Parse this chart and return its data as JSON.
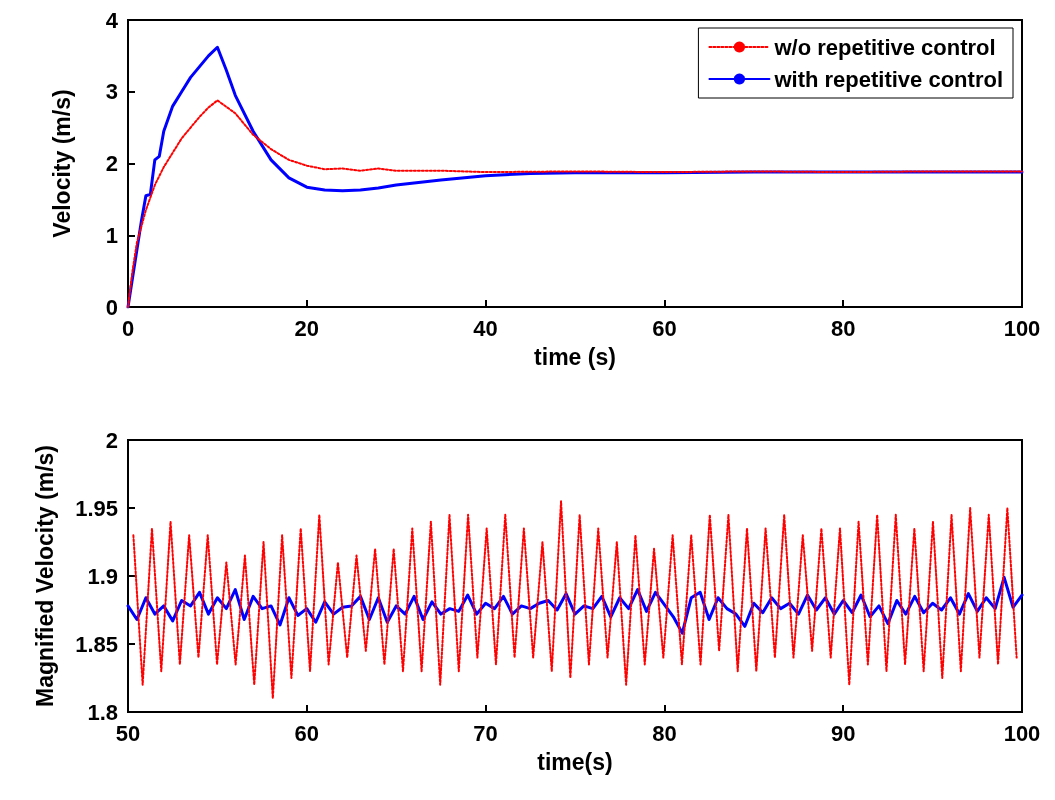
{
  "chart_data": [
    {
      "type": "line",
      "xlabel": "time (s)",
      "ylabel": "Velocity (m/s)",
      "xlim": [
        0,
        100
      ],
      "xticks": [
        0,
        20,
        40,
        60,
        80,
        100
      ],
      "ylim": [
        0,
        4
      ],
      "yticks": [
        0,
        1,
        2,
        3,
        4
      ],
      "grid": false,
      "legend": "top right",
      "marker": "none",
      "series": [
        {
          "name": "w/o repetitive control",
          "color": "#ff0000",
          "line_style": "dotted",
          "x": [
            0,
            0.5,
            1,
            2,
            3,
            4,
            5,
            6,
            7,
            8,
            9,
            10,
            12,
            14,
            16,
            18,
            20,
            22,
            24,
            26,
            28,
            30,
            35,
            40,
            50,
            60,
            70,
            80,
            90,
            100
          ],
          "values": [
            0,
            0.5,
            0.9,
            1.35,
            1.7,
            1.95,
            2.15,
            2.35,
            2.5,
            2.65,
            2.78,
            2.88,
            2.7,
            2.4,
            2.2,
            2.05,
            1.97,
            1.92,
            1.93,
            1.9,
            1.93,
            1.9,
            1.9,
            1.88,
            1.89,
            1.88,
            1.89,
            1.88,
            1.89,
            1.89
          ]
        },
        {
          "name": "with repetitive control",
          "color": "#0000ff",
          "line_style": "solid",
          "x": [
            0,
            0.5,
            1,
            1.5,
            2,
            2.5,
            3,
            3.5,
            4,
            5,
            6,
            7,
            8,
            9,
            10,
            11,
            12,
            14,
            16,
            18,
            20,
            22,
            24,
            26,
            28,
            30,
            35,
            40,
            45,
            50,
            60,
            70,
            80,
            90,
            100
          ],
          "values": [
            0,
            0.4,
            0.8,
            1.2,
            1.55,
            1.57,
            2.05,
            2.1,
            2.45,
            2.8,
            3.0,
            3.2,
            3.35,
            3.5,
            3.62,
            3.3,
            2.95,
            2.45,
            2.05,
            1.8,
            1.67,
            1.63,
            1.62,
            1.63,
            1.66,
            1.7,
            1.77,
            1.83,
            1.86,
            1.87,
            1.87,
            1.88,
            1.88,
            1.88,
            1.88
          ]
        }
      ]
    },
    {
      "type": "line",
      "xlabel": "time(s)",
      "ylabel": "Magnified Velocity (m/s)",
      "xlim": [
        50,
        100
      ],
      "xticks": [
        50,
        60,
        70,
        80,
        90,
        100
      ],
      "ylim": [
        1.8,
        2
      ],
      "yticks": [
        1.8,
        1.85,
        1.9,
        1.95,
        2
      ],
      "grid": false,
      "marker": "none",
      "series": [
        {
          "color": "#ff0000",
          "line_style": "dotted",
          "x": [
            50.3,
            50.82,
            51.34,
            51.86,
            52.38,
            52.9,
            53.42,
            53.94,
            54.46,
            54.98,
            55.5,
            56.02,
            56.54,
            57.06,
            57.58,
            58.1,
            58.62,
            59.14,
            59.66,
            60.18,
            60.7,
            61.22,
            61.74,
            62.26,
            62.78,
            63.3,
            63.82,
            64.34,
            64.86,
            65.38,
            65.9,
            66.42,
            66.94,
            67.46,
            67.98,
            68.5,
            69.02,
            69.54,
            70.06,
            70.58,
            71.1,
            71.62,
            72.14,
            72.66,
            73.18,
            73.7,
            74.22,
            74.74,
            75.26,
            75.78,
            76.3,
            76.82,
            77.34,
            77.86,
            78.38,
            78.9,
            79.42,
            79.94,
            80.46,
            80.98,
            81.5,
            82.02,
            82.54,
            83.06,
            83.58,
            84.1,
            84.62,
            85.14,
            85.66,
            86.18,
            86.7,
            87.22,
            87.74,
            88.26,
            88.78,
            89.3,
            89.82,
            90.34,
            90.86,
            91.38,
            91.9,
            92.42,
            92.94,
            93.46,
            93.98,
            94.5,
            95.02,
            95.54,
            96.06,
            96.58,
            97.1,
            97.62,
            98.14,
            98.66,
            99.18,
            99.7
          ],
          "values": [
            1.93,
            1.82,
            1.935,
            1.83,
            1.94,
            1.835,
            1.93,
            1.84,
            1.93,
            1.835,
            1.91,
            1.835,
            1.915,
            1.82,
            1.925,
            1.81,
            1.93,
            1.825,
            1.935,
            1.83,
            1.945,
            1.835,
            1.91,
            1.84,
            1.915,
            1.845,
            1.92,
            1.835,
            1.92,
            1.83,
            1.935,
            1.83,
            1.94,
            1.82,
            1.945,
            1.83,
            1.945,
            1.84,
            1.935,
            1.835,
            1.945,
            1.84,
            1.935,
            1.84,
            1.925,
            1.83,
            1.955,
            1.825,
            1.945,
            1.835,
            1.935,
            1.84,
            1.925,
            1.82,
            1.93,
            1.835,
            1.92,
            1.84,
            1.93,
            1.835,
            1.93,
            1.835,
            1.945,
            1.845,
            1.945,
            1.83,
            1.935,
            1.83,
            1.935,
            1.84,
            1.945,
            1.84,
            1.93,
            1.845,
            1.935,
            1.84,
            1.935,
            1.82,
            1.94,
            1.835,
            1.945,
            1.83,
            1.945,
            1.835,
            1.935,
            1.83,
            1.94,
            1.825,
            1.945,
            1.83,
            1.95,
            1.84,
            1.945,
            1.835,
            1.95,
            1.84
          ]
        },
        {
          "color": "#0000ff",
          "line_style": "solid",
          "x": [
            50,
            50.5,
            51,
            51.5,
            52,
            52.5,
            53,
            53.5,
            54,
            54.5,
            55,
            55.5,
            56,
            56.5,
            57,
            57.5,
            58,
            58.5,
            59,
            59.5,
            60,
            60.5,
            61,
            61.5,
            62,
            62.5,
            63,
            63.5,
            64,
            64.5,
            65,
            65.5,
            66,
            66.5,
            67,
            67.5,
            68,
            68.5,
            69,
            69.5,
            70,
            70.5,
            71,
            71.5,
            72,
            72.5,
            73,
            73.5,
            74,
            74.5,
            75,
            75.5,
            76,
            76.5,
            77,
            77.5,
            78,
            78.5,
            79,
            79.5,
            80,
            80.5,
            81,
            81.5,
            82,
            82.5,
            83,
            83.5,
            84,
            84.5,
            85,
            85.5,
            86,
            86.5,
            87,
            87.5,
            88,
            88.5,
            89,
            89.5,
            90,
            90.5,
            91,
            91.5,
            92,
            92.5,
            93,
            93.5,
            94,
            94.5,
            95,
            95.5,
            96,
            96.5,
            97,
            97.5,
            98,
            98.5,
            99,
            99.5,
            100
          ],
          "values": [
            1.878,
            1.868,
            1.884,
            1.872,
            1.878,
            1.867,
            1.882,
            1.878,
            1.888,
            1.872,
            1.884,
            1.876,
            1.89,
            1.868,
            1.885,
            1.876,
            1.878,
            1.864,
            1.884,
            1.871,
            1.876,
            1.866,
            1.881,
            1.872,
            1.877,
            1.878,
            1.885,
            1.868,
            1.884,
            1.866,
            1.878,
            1.872,
            1.885,
            1.868,
            1.881,
            1.872,
            1.876,
            1.874,
            1.886,
            1.872,
            1.88,
            1.876,
            1.885,
            1.872,
            1.878,
            1.876,
            1.88,
            1.882,
            1.875,
            1.887,
            1.872,
            1.878,
            1.876,
            1.885,
            1.87,
            1.884,
            1.876,
            1.89,
            1.874,
            1.888,
            1.879,
            1.87,
            1.858,
            1.884,
            1.888,
            1.868,
            1.884,
            1.876,
            1.872,
            1.863,
            1.88,
            1.873,
            1.884,
            1.876,
            1.88,
            1.872,
            1.886,
            1.875,
            1.884,
            1.872,
            1.882,
            1.873,
            1.886,
            1.87,
            1.878,
            1.865,
            1.882,
            1.872,
            1.885,
            1.873,
            1.88,
            1.875,
            1.884,
            1.872,
            1.887,
            1.874,
            1.884,
            1.876,
            1.899,
            1.877,
            1.886
          ]
        }
      ]
    }
  ]
}
